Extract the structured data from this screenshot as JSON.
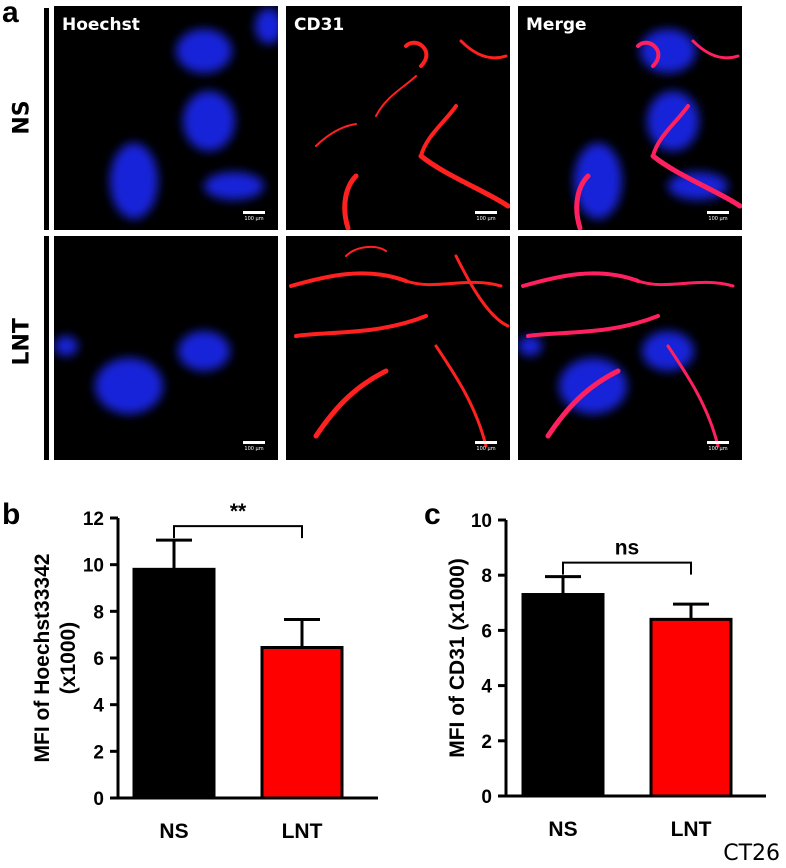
{
  "panels": {
    "a_letter": "a",
    "b_letter": "b",
    "c_letter": "c"
  },
  "microscopy": {
    "columns": [
      "Hoechst",
      "CD31",
      "Merge"
    ],
    "rows": [
      "NS",
      "LNT"
    ],
    "scale_bar": "100 μm",
    "channel_colors": {
      "Hoechst": "#1a2bff",
      "CD31": "#ff1a1a"
    }
  },
  "chart_data": [
    {
      "type": "bar",
      "categories": [
        "NS",
        "LNT"
      ],
      "values": [
        9.8,
        6.45
      ],
      "errors": [
        1.25,
        1.2
      ],
      "colors": [
        "#000000",
        "#ff0000"
      ],
      "ylabel": "MFI of Hoechst33342 (x1000)",
      "ylabel_lines": [
        "MFI of Hoechst33342",
        "(x1000)"
      ],
      "ylim": [
        0,
        12
      ],
      "yticks": [
        0,
        2,
        4,
        6,
        8,
        10,
        12
      ],
      "significance": "**"
    },
    {
      "type": "bar",
      "categories": [
        "NS",
        "LNT"
      ],
      "values": [
        7.3,
        6.4
      ],
      "errors": [
        0.65,
        0.55
      ],
      "colors": [
        "#000000",
        "#ff0000"
      ],
      "ylabel": "MFI of CD31 (x1000)",
      "ylabel_lines": [
        "MFI of CD31 (x1000)"
      ],
      "ylim": [
        0,
        10
      ],
      "yticks": [
        0,
        2,
        4,
        6,
        8,
        10
      ],
      "significance": "ns"
    }
  ],
  "footer": "CT26"
}
